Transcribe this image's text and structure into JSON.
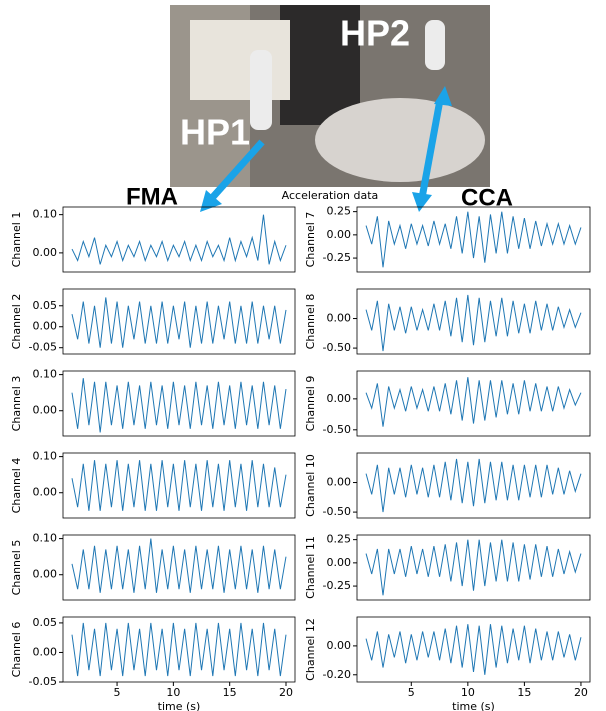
{
  "photo": {
    "labels": [
      "HP1",
      "HP2"
    ]
  },
  "groups": [
    "FMA",
    "CCA"
  ],
  "suptitle": "Acceleration data",
  "chart_data": [
    {
      "type": "line",
      "ylabel": "Channel 1",
      "color": "#1f77b4",
      "xlim": [
        0.2,
        20.8
      ],
      "ylim": [
        -0.05,
        0.12
      ],
      "yticks": [
        {
          "value": 0,
          "label": "0.00"
        },
        {
          "value": 0.1,
          "label": "0.10"
        }
      ],
      "x": [
        1,
        1.5,
        2,
        2.5,
        3,
        3.5,
        4,
        4.5,
        5,
        5.5,
        6,
        6.5,
        7,
        7.5,
        8,
        8.5,
        9,
        9.5,
        10,
        10.5,
        11,
        11.5,
        12,
        12.5,
        13,
        13.5,
        14,
        14.5,
        15,
        15.5,
        16,
        16.5,
        17,
        17.5,
        18,
        18.5,
        19,
        19.5,
        20
      ],
      "values": [
        0.01,
        -0.02,
        0.03,
        -0.01,
        0.04,
        -0.03,
        0.02,
        -0.01,
        0.03,
        -0.02,
        0.02,
        -0.01,
        0.03,
        -0.02,
        0.02,
        -0.01,
        0.03,
        -0.02,
        0.02,
        -0.01,
        0.03,
        -0.02,
        0.02,
        -0.02,
        0.03,
        -0.01,
        0.02,
        -0.02,
        0.04,
        -0.02,
        0.03,
        -0.01,
        0.04,
        -0.02,
        0.1,
        -0.03,
        0.03,
        -0.02,
        0.02
      ]
    },
    {
      "type": "line",
      "ylabel": "Channel 2",
      "color": "#1f77b4",
      "xlim": [
        0.2,
        20.8
      ],
      "ylim": [
        -0.065,
        0.09
      ],
      "yticks": [
        {
          "value": 0.05,
          "label": "0.05"
        },
        {
          "value": 0,
          "label": "0.00"
        },
        {
          "value": -0.05,
          "label": "-0.05"
        }
      ],
      "x": [
        1,
        1.5,
        2,
        2.5,
        3,
        3.5,
        4,
        4.5,
        5,
        5.5,
        6,
        6.5,
        7,
        7.5,
        8,
        8.5,
        9,
        9.5,
        10,
        10.5,
        11,
        11.5,
        12,
        12.5,
        13,
        13.5,
        14,
        14.5,
        15,
        15.5,
        16,
        16.5,
        17,
        17.5,
        18,
        18.5,
        19,
        19.5,
        20
      ],
      "values": [
        0.03,
        -0.03,
        0.06,
        -0.04,
        0.05,
        -0.05,
        0.07,
        -0.04,
        0.06,
        -0.05,
        0.05,
        -0.03,
        0.06,
        -0.04,
        0.05,
        -0.04,
        0.06,
        -0.04,
        0.05,
        -0.03,
        0.06,
        -0.05,
        0.05,
        -0.04,
        0.06,
        -0.04,
        0.05,
        -0.03,
        0.06,
        -0.04,
        0.05,
        -0.04,
        0.06,
        -0.04,
        0.05,
        -0.03,
        0.05,
        -0.04,
        0.04
      ]
    },
    {
      "type": "line",
      "ylabel": "Channel 3",
      "color": "#1f77b4",
      "xlim": [
        0.2,
        20.8
      ],
      "ylim": [
        -0.07,
        0.11
      ],
      "yticks": [
        {
          "value": 0.1,
          "label": "0.10"
        },
        {
          "value": 0,
          "label": "0.00"
        }
      ],
      "x": [
        1,
        1.5,
        2,
        2.5,
        3,
        3.5,
        4,
        4.5,
        5,
        5.5,
        6,
        6.5,
        7,
        7.5,
        8,
        8.5,
        9,
        9.5,
        10,
        10.5,
        11,
        11.5,
        12,
        12.5,
        13,
        13.5,
        14,
        14.5,
        15,
        15.5,
        16,
        16.5,
        17,
        17.5,
        18,
        18.5,
        19,
        19.5,
        20
      ],
      "values": [
        0.05,
        -0.05,
        0.09,
        -0.04,
        0.08,
        -0.06,
        0.08,
        -0.04,
        0.07,
        -0.05,
        0.08,
        -0.04,
        0.07,
        -0.05,
        0.08,
        -0.04,
        0.07,
        -0.05,
        0.08,
        -0.04,
        0.07,
        -0.05,
        0.08,
        -0.04,
        0.07,
        -0.05,
        0.08,
        -0.04,
        0.07,
        -0.05,
        0.08,
        -0.04,
        0.07,
        -0.05,
        0.08,
        -0.04,
        0.07,
        -0.05,
        0.06
      ]
    },
    {
      "type": "line",
      "ylabel": "Channel 4",
      "color": "#1f77b4",
      "xlim": [
        0.2,
        20.8
      ],
      "ylim": [
        -0.07,
        0.11
      ],
      "yticks": [
        {
          "value": 0.1,
          "label": "0.10"
        },
        {
          "value": 0,
          "label": "0.00"
        }
      ],
      "x": [
        1,
        1.5,
        2,
        2.5,
        3,
        3.5,
        4,
        4.5,
        5,
        5.5,
        6,
        6.5,
        7,
        7.5,
        8,
        8.5,
        9,
        9.5,
        10,
        10.5,
        11,
        11.5,
        12,
        12.5,
        13,
        13.5,
        14,
        14.5,
        15,
        15.5,
        16,
        16.5,
        17,
        17.5,
        18,
        18.5,
        19,
        19.5,
        20
      ],
      "values": [
        0.04,
        -0.04,
        0.08,
        -0.05,
        0.09,
        -0.05,
        0.08,
        -0.04,
        0.09,
        -0.05,
        0.08,
        -0.04,
        0.09,
        -0.05,
        0.08,
        -0.05,
        0.09,
        -0.04,
        0.08,
        -0.05,
        0.09,
        -0.04,
        0.08,
        -0.05,
        0.09,
        -0.04,
        0.08,
        -0.05,
        0.09,
        -0.04,
        0.08,
        -0.05,
        0.09,
        -0.04,
        0.08,
        -0.04,
        0.07,
        -0.04,
        0.05
      ]
    },
    {
      "type": "line",
      "ylabel": "Channel 5",
      "color": "#1f77b4",
      "xlim": [
        0.2,
        20.8
      ],
      "ylim": [
        -0.07,
        0.11
      ],
      "yticks": [
        {
          "value": 0.1,
          "label": "0.10"
        },
        {
          "value": 0,
          "label": "0.00"
        }
      ],
      "x": [
        1,
        1.5,
        2,
        2.5,
        3,
        3.5,
        4,
        4.5,
        5,
        5.5,
        6,
        6.5,
        7,
        7.5,
        8,
        8.5,
        9,
        9.5,
        10,
        10.5,
        11,
        11.5,
        12,
        12.5,
        13,
        13.5,
        14,
        14.5,
        15,
        15.5,
        16,
        16.5,
        17,
        17.5,
        18,
        18.5,
        19,
        19.5,
        20
      ],
      "values": [
        0.03,
        -0.04,
        0.07,
        -0.04,
        0.08,
        -0.05,
        0.07,
        -0.04,
        0.08,
        -0.04,
        0.07,
        -0.05,
        0.08,
        -0.04,
        0.1,
        -0.05,
        0.07,
        -0.04,
        0.08,
        -0.04,
        0.07,
        -0.05,
        0.08,
        -0.04,
        0.07,
        -0.04,
        0.08,
        -0.05,
        0.07,
        -0.04,
        0.08,
        -0.04,
        0.07,
        -0.05,
        0.08,
        -0.04,
        0.07,
        -0.04,
        0.05
      ]
    },
    {
      "type": "line",
      "ylabel": "Channel 6",
      "xlabel": "time (s)",
      "color": "#1f77b4",
      "xlim": [
        0.2,
        20.8
      ],
      "ylim": [
        -0.05,
        0.06
      ],
      "xticks": [
        5,
        10,
        15,
        20
      ],
      "yticks": [
        {
          "value": 0.05,
          "label": "0.05"
        },
        {
          "value": 0,
          "label": "0.00"
        },
        {
          "value": -0.05,
          "label": "-0.05"
        }
      ],
      "x": [
        1,
        1.5,
        2,
        2.5,
        3,
        3.5,
        4,
        4.5,
        5,
        5.5,
        6,
        6.5,
        7,
        7.5,
        8,
        8.5,
        9,
        9.5,
        10,
        10.5,
        11,
        11.5,
        12,
        12.5,
        13,
        13.5,
        14,
        14.5,
        15,
        15.5,
        16,
        16.5,
        17,
        17.5,
        18,
        18.5,
        19,
        19.5,
        20
      ],
      "values": [
        0.03,
        -0.04,
        0.05,
        -0.03,
        0.04,
        -0.04,
        0.05,
        -0.03,
        0.04,
        -0.04,
        0.05,
        -0.03,
        0.04,
        -0.04,
        0.05,
        -0.03,
        0.04,
        -0.04,
        0.05,
        -0.03,
        0.04,
        -0.04,
        0.05,
        -0.03,
        0.04,
        -0.04,
        0.05,
        -0.03,
        0.04,
        -0.04,
        0.05,
        -0.03,
        0.04,
        -0.04,
        0.05,
        -0.03,
        0.04,
        -0.04,
        0.03
      ]
    },
    {
      "type": "line",
      "ylabel": "Channel 7",
      "color": "#1f77b4",
      "xlim": [
        0.2,
        20.8
      ],
      "ylim": [
        -0.4,
        0.3
      ],
      "yticks": [
        {
          "value": 0.25,
          "label": "0.25"
        },
        {
          "value": 0,
          "label": "0.00"
        },
        {
          "value": -0.25,
          "label": "-0.25"
        }
      ],
      "x": [
        1,
        1.5,
        2,
        2.5,
        3,
        3.5,
        4,
        4.5,
        5,
        5.5,
        6,
        6.5,
        7,
        7.5,
        8,
        8.5,
        9,
        9.5,
        10,
        10.5,
        11,
        11.5,
        12,
        12.5,
        13,
        13.5,
        14,
        14.5,
        15,
        15.5,
        16,
        16.5,
        17,
        17.5,
        18,
        18.5,
        19,
        19.5,
        20
      ],
      "values": [
        0.1,
        -0.1,
        0.2,
        -0.35,
        0.15,
        -0.1,
        0.1,
        -0.15,
        0.12,
        -0.1,
        0.1,
        -0.12,
        0.15,
        -0.1,
        0.12,
        -0.15,
        0.2,
        -0.2,
        0.25,
        -0.25,
        0.2,
        -0.3,
        0.22,
        -0.2,
        0.25,
        -0.2,
        0.2,
        -0.15,
        0.18,
        -0.15,
        0.15,
        -0.12,
        0.12,
        -0.1,
        0.12,
        -0.1,
        0.1,
        -0.1,
        0.08
      ]
    },
    {
      "type": "line",
      "ylabel": "Channel 8",
      "color": "#1f77b4",
      "xlim": [
        0.2,
        20.8
      ],
      "ylim": [
        -0.6,
        0.5
      ],
      "yticks": [
        {
          "value": 0,
          "label": "0.00"
        },
        {
          "value": -0.5,
          "label": "-0.50"
        }
      ],
      "x": [
        1,
        1.5,
        2,
        2.5,
        3,
        3.5,
        4,
        4.5,
        5,
        5.5,
        6,
        6.5,
        7,
        7.5,
        8,
        8.5,
        9,
        9.5,
        10,
        10.5,
        11,
        11.5,
        12,
        12.5,
        13,
        13.5,
        14,
        14.5,
        15,
        15.5,
        16,
        16.5,
        17,
        17.5,
        18,
        18.5,
        19,
        19.5,
        20
      ],
      "values": [
        0.15,
        -0.2,
        0.3,
        -0.55,
        0.25,
        -0.2,
        0.2,
        -0.25,
        0.2,
        -0.2,
        0.15,
        -0.2,
        0.25,
        -0.2,
        0.3,
        -0.3,
        0.35,
        -0.4,
        0.4,
        -0.45,
        0.35,
        -0.4,
        0.3,
        -0.3,
        0.35,
        -0.3,
        0.3,
        -0.25,
        0.25,
        -0.25,
        0.3,
        -0.2,
        0.25,
        -0.2,
        0.2,
        -0.15,
        0.15,
        -0.15,
        0.1
      ]
    },
    {
      "type": "line",
      "ylabel": "Channel 9",
      "color": "#1f77b4",
      "xlim": [
        0.2,
        20.8
      ],
      "ylim": [
        -0.6,
        0.45
      ],
      "yticks": [
        {
          "value": 0,
          "label": "0.00"
        },
        {
          "value": -0.5,
          "label": "-0.50"
        }
      ],
      "x": [
        1,
        1.5,
        2,
        2.5,
        3,
        3.5,
        4,
        4.5,
        5,
        5.5,
        6,
        6.5,
        7,
        7.5,
        8,
        8.5,
        9,
        9.5,
        10,
        10.5,
        11,
        11.5,
        12,
        12.5,
        13,
        13.5,
        14,
        14.5,
        15,
        15.5,
        16,
        16.5,
        17,
        17.5,
        18,
        18.5,
        19,
        19.5,
        20
      ],
      "values": [
        0.1,
        -0.15,
        0.25,
        -0.45,
        0.2,
        -0.15,
        0.15,
        -0.2,
        0.2,
        -0.15,
        0.15,
        -0.2,
        0.2,
        -0.2,
        0.25,
        -0.25,
        0.3,
        -0.35,
        0.35,
        -0.4,
        0.3,
        -0.35,
        0.3,
        -0.3,
        0.3,
        -0.25,
        0.25,
        -0.25,
        0.3,
        -0.2,
        0.25,
        -0.2,
        0.2,
        -0.2,
        0.2,
        -0.15,
        0.15,
        -0.1,
        0.1
      ]
    },
    {
      "type": "line",
      "ylabel": "Channel 10",
      "color": "#1f77b4",
      "xlim": [
        0.2,
        20.8
      ],
      "ylim": [
        -0.6,
        0.5
      ],
      "yticks": [
        {
          "value": 0,
          "label": "0.00"
        },
        {
          "value": -0.5,
          "label": "-0.50"
        }
      ],
      "x": [
        1,
        1.5,
        2,
        2.5,
        3,
        3.5,
        4,
        4.5,
        5,
        5.5,
        6,
        6.5,
        7,
        7.5,
        8,
        8.5,
        9,
        9.5,
        10,
        10.5,
        11,
        11.5,
        12,
        12.5,
        13,
        13.5,
        14,
        14.5,
        15,
        15.5,
        16,
        16.5,
        17,
        17.5,
        18,
        18.5,
        19,
        19.5,
        20
      ],
      "values": [
        0.15,
        -0.2,
        0.3,
        -0.5,
        0.25,
        -0.2,
        0.25,
        -0.25,
        0.3,
        -0.2,
        0.25,
        -0.25,
        0.3,
        -0.25,
        0.35,
        -0.3,
        0.4,
        -0.35,
        0.35,
        -0.4,
        0.4,
        -0.35,
        0.35,
        -0.3,
        0.35,
        -0.3,
        0.3,
        -0.3,
        0.3,
        -0.25,
        0.3,
        -0.25,
        0.3,
        -0.2,
        0.25,
        -0.2,
        0.2,
        -0.15,
        0.15
      ]
    },
    {
      "type": "line",
      "ylabel": "Channel 11",
      "color": "#1f77b4",
      "xlim": [
        0.2,
        20.8
      ],
      "ylim": [
        -0.4,
        0.3
      ],
      "yticks": [
        {
          "value": 0.25,
          "label": "0.25"
        },
        {
          "value": 0,
          "label": "0.00"
        },
        {
          "value": -0.25,
          "label": "-0.25"
        }
      ],
      "x": [
        1,
        1.5,
        2,
        2.5,
        3,
        3.5,
        4,
        4.5,
        5,
        5.5,
        6,
        6.5,
        7,
        7.5,
        8,
        8.5,
        9,
        9.5,
        10,
        10.5,
        11,
        11.5,
        12,
        12.5,
        13,
        13.5,
        14,
        14.5,
        15,
        15.5,
        16,
        16.5,
        17,
        17.5,
        18,
        18.5,
        19,
        19.5,
        20
      ],
      "values": [
        0.1,
        -0.12,
        0.15,
        -0.35,
        0.15,
        -0.12,
        0.15,
        -0.15,
        0.18,
        -0.12,
        0.15,
        -0.15,
        0.18,
        -0.15,
        0.2,
        -0.2,
        0.22,
        -0.25,
        0.25,
        -0.3,
        0.25,
        -0.25,
        0.22,
        -0.2,
        0.25,
        -0.2,
        0.22,
        -0.2,
        0.2,
        -0.18,
        0.2,
        -0.15,
        0.18,
        -0.15,
        0.15,
        -0.12,
        0.12,
        -0.1,
        0.1
      ]
    },
    {
      "type": "line",
      "ylabel": "Channel 12",
      "xlabel": "time (s)",
      "color": "#1f77b4",
      "xlim": [
        0.2,
        20.8
      ],
      "ylim": [
        -0.25,
        0.2
      ],
      "xticks": [
        5,
        10,
        15,
        20
      ],
      "yticks": [
        {
          "value": 0,
          "label": "0.00"
        },
        {
          "value": -0.2,
          "label": "-0.20"
        }
      ],
      "x": [
        1,
        1.5,
        2,
        2.5,
        3,
        3.5,
        4,
        4.5,
        5,
        5.5,
        6,
        6.5,
        7,
        7.5,
        8,
        8.5,
        9,
        9.5,
        10,
        10.5,
        11,
        11.5,
        12,
        12.5,
        13,
        13.5,
        14,
        14.5,
        15,
        15.5,
        16,
        16.5,
        17,
        17.5,
        18,
        18.5,
        19,
        19.5,
        20
      ],
      "values": [
        0.05,
        -0.1,
        0.1,
        -0.15,
        0.08,
        -0.08,
        0.1,
        -0.12,
        0.08,
        -0.1,
        0.1,
        -0.08,
        0.1,
        -0.1,
        0.12,
        -0.12,
        0.14,
        -0.15,
        0.15,
        -0.18,
        0.14,
        -0.2,
        0.15,
        -0.15,
        0.14,
        -0.12,
        0.12,
        -0.1,
        0.14,
        -0.12,
        0.12,
        -0.1,
        0.1,
        -0.1,
        0.1,
        -0.08,
        0.08,
        -0.1,
        0.06
      ]
    }
  ]
}
